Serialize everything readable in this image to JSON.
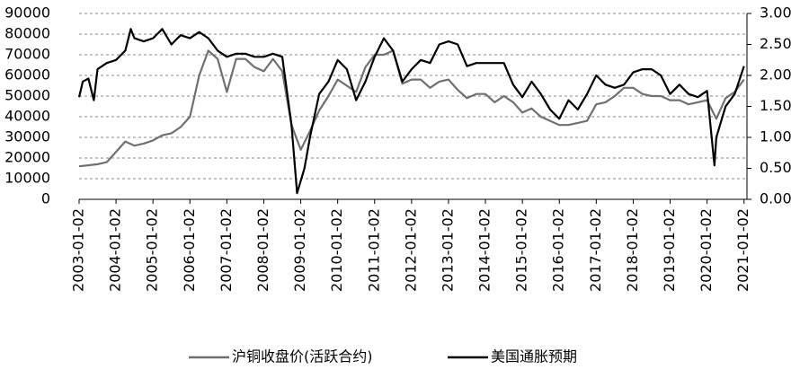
{
  "chart_data": {
    "type": "line",
    "xlim": [
      2003,
      2021.08
    ],
    "xticks": [
      {
        "value": 2003,
        "label": "2003-01-02"
      },
      {
        "value": 2004,
        "label": "2004-01-02"
      },
      {
        "value": 2005,
        "label": "2005-01-02"
      },
      {
        "value": 2006,
        "label": "2006-01-02"
      },
      {
        "value": 2007,
        "label": "2007-01-02"
      },
      {
        "value": 2008,
        "label": "2008-01-02"
      },
      {
        "value": 2009,
        "label": "2009-01-02"
      },
      {
        "value": 2010,
        "label": "2010-01-02"
      },
      {
        "value": 2011,
        "label": "2011-01-02"
      },
      {
        "value": 2012,
        "label": "2012-01-02"
      },
      {
        "value": 2013,
        "label": "2013-01-02"
      },
      {
        "value": 2014,
        "label": "2014-01-02"
      },
      {
        "value": 2015,
        "label": "2015-01-02"
      },
      {
        "value": 2016,
        "label": "2016-01-02"
      },
      {
        "value": 2017,
        "label": "2017-01-02"
      },
      {
        "value": 2018,
        "label": "2018-01-02"
      },
      {
        "value": 2019,
        "label": "2019-01-02"
      },
      {
        "value": 2020,
        "label": "2020-01-02"
      },
      {
        "value": 2021,
        "label": "2021-01-02"
      }
    ],
    "ylim": [
      0,
      90000
    ],
    "yticks": [
      0,
      10000,
      20000,
      30000,
      40000,
      50000,
      60000,
      70000,
      80000,
      90000
    ],
    "y2lim": [
      0,
      3
    ],
    "y2ticks": [
      {
        "value": 0,
        "label": "0.00"
      },
      {
        "value": 0.5,
        "label": "0.50"
      },
      {
        "value": 1,
        "label": "1.00"
      },
      {
        "value": 1.5,
        "label": "1.50"
      },
      {
        "value": 2,
        "label": "2.00"
      },
      {
        "value": 2.5,
        "label": "2.50"
      },
      {
        "value": 3,
        "label": "3.00"
      }
    ],
    "grid": true,
    "legend": "bottom",
    "series": [
      {
        "name": "沪铜收盘价(活跃合约)",
        "color": "#707070",
        "x": [
          2003,
          2003.25,
          2003.5,
          2003.75,
          2004,
          2004.25,
          2004.5,
          2004.75,
          2005,
          2005.25,
          2005.5,
          2005.75,
          2006,
          2006.25,
          2006.5,
          2006.75,
          2007,
          2007.25,
          2007.5,
          2007.75,
          2008,
          2008.25,
          2008.5,
          2008.75,
          2009,
          2009.25,
          2009.5,
          2009.75,
          2010,
          2010.25,
          2010.5,
          2010.75,
          2011,
          2011.25,
          2011.5,
          2011.75,
          2012,
          2012.25,
          2012.5,
          2012.75,
          2013,
          2013.25,
          2013.5,
          2013.75,
          2014,
          2014.25,
          2014.5,
          2014.75,
          2015,
          2015.25,
          2015.5,
          2015.75,
          2016,
          2016.25,
          2016.5,
          2016.75,
          2017,
          2017.25,
          2017.5,
          2017.75,
          2018,
          2018.25,
          2018.5,
          2018.75,
          2019,
          2019.25,
          2019.5,
          2019.75,
          2020,
          2020.25,
          2020.5,
          2020.75,
          2021
        ],
        "values": [
          16000,
          16500,
          17000,
          18000,
          23000,
          28000,
          26000,
          27000,
          28500,
          31000,
          32000,
          35000,
          40000,
          60000,
          72000,
          68000,
          52000,
          68000,
          68000,
          64000,
          62000,
          68000,
          62000,
          36000,
          24000,
          33000,
          43000,
          50000,
          58000,
          55000,
          52000,
          64000,
          70000,
          70000,
          72000,
          56000,
          58000,
          58000,
          54000,
          57000,
          58000,
          53000,
          49000,
          51000,
          51000,
          47000,
          50000,
          47000,
          42000,
          44000,
          40000,
          38000,
          36000,
          36000,
          37000,
          38000,
          46000,
          47000,
          50000,
          54000,
          54000,
          51000,
          50000,
          50000,
          48000,
          48000,
          46000,
          47000,
          48000,
          39000,
          49000,
          52000,
          58000
        ]
      },
      {
        "name": "美国通胀预期",
        "color": "#000000",
        "axis": "y2",
        "x": [
          2003,
          2003.1,
          2003.25,
          2003.4,
          2003.5,
          2003.75,
          2004,
          2004.25,
          2004.4,
          2004.5,
          2004.75,
          2005,
          2005.25,
          2005.5,
          2005.75,
          2006,
          2006.25,
          2006.5,
          2006.75,
          2007,
          2007.25,
          2007.5,
          2007.75,
          2008,
          2008.25,
          2008.5,
          2008.75,
          2008.9,
          2009,
          2009.1,
          2009.25,
          2009.5,
          2009.75,
          2010,
          2010.25,
          2010.5,
          2010.75,
          2011,
          2011.25,
          2011.5,
          2011.75,
          2012,
          2012.25,
          2012.5,
          2012.75,
          2013,
          2013.25,
          2013.5,
          2013.75,
          2014,
          2014.25,
          2014.5,
          2014.75,
          2015,
          2015.25,
          2015.5,
          2015.75,
          2016,
          2016.25,
          2016.5,
          2016.75,
          2017,
          2017.25,
          2017.5,
          2017.75,
          2018,
          2018.25,
          2018.5,
          2018.75,
          2019,
          2019.25,
          2019.5,
          2019.75,
          2020,
          2020.2,
          2020.25,
          2020.5,
          2020.75,
          2021
        ],
        "values": [
          1.65,
          1.9,
          1.95,
          1.6,
          2.1,
          2.2,
          2.25,
          2.4,
          2.75,
          2.6,
          2.55,
          2.6,
          2.75,
          2.5,
          2.65,
          2.6,
          2.7,
          2.6,
          2.4,
          2.3,
          2.35,
          2.35,
          2.3,
          2.3,
          2.35,
          2.3,
          1.2,
          0.1,
          0.3,
          0.5,
          1.0,
          1.7,
          1.9,
          2.25,
          2.1,
          1.6,
          1.9,
          2.3,
          2.6,
          2.4,
          1.9,
          2.1,
          2.25,
          2.2,
          2.5,
          2.55,
          2.5,
          2.15,
          2.2,
          2.2,
          2.2,
          2.2,
          1.85,
          1.65,
          1.9,
          1.7,
          1.45,
          1.3,
          1.6,
          1.45,
          1.7,
          2.0,
          1.85,
          1.8,
          1.85,
          2.05,
          2.1,
          2.1,
          2.0,
          1.7,
          1.85,
          1.7,
          1.65,
          1.75,
          0.55,
          1.0,
          1.5,
          1.7,
          2.15
        ]
      }
    ]
  }
}
